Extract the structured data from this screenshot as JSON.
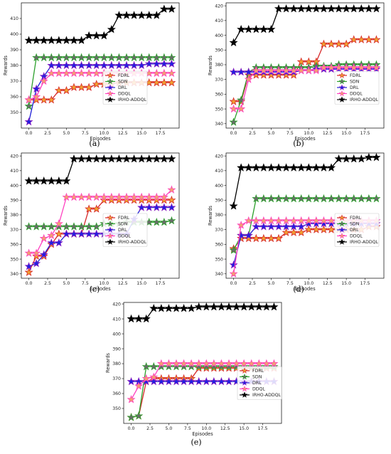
{
  "figure": {
    "legend_order": [
      "FDRL",
      "SDN",
      "DRL",
      "DDQL",
      "IRHO-ADDQL"
    ]
  },
  "series_style": {
    "FDRL": {
      "line": "#d62728",
      "marker_face": "#f0a030",
      "marker_edge": "#d62728"
    },
    "SDN": {
      "line": "#2ca02c",
      "marker_face": "#6a6a6a",
      "marker_edge": "#2ca02c"
    },
    "DRL": {
      "line": "#1f1fd6",
      "marker_face": "#2020e0",
      "marker_edge": "#8a20c0"
    },
    "DDQL": {
      "line": "#ff40c0",
      "marker_face": "#f2a070",
      "marker_edge": "#ff40c0"
    },
    "IRHO-ADDQL": {
      "line": "#000000",
      "marker_face": "#000000",
      "marker_edge": "#000000"
    }
  },
  "chart_data": [
    {
      "panel": "(a)",
      "type": "line",
      "xlabel": "Episodes",
      "ylabel": "Rewards",
      "xlim": [
        -1,
        20
      ],
      "ylim": [
        340,
        420
      ],
      "xticks": [
        0.0,
        2.5,
        5.0,
        7.5,
        10.0,
        12.5,
        15.0,
        17.5
      ],
      "xtick_labels": [
        "0.0",
        "2.5",
        "5.0",
        "7.5",
        "10.0",
        "12.5",
        "15.0",
        "17.5"
      ],
      "yticks": [
        350,
        360,
        370,
        380,
        390,
        400,
        410
      ],
      "legend_position": "center-right",
      "x": [
        0,
        1,
        2,
        3,
        4,
        5,
        6,
        7,
        8,
        9,
        10,
        11,
        12,
        13,
        14,
        15,
        16,
        17,
        18,
        19
      ],
      "series": [
        {
          "name": "FDRL",
          "values": [
            358,
            358,
            358,
            358,
            364,
            364,
            366,
            366,
            366,
            368,
            368,
            368,
            369,
            369,
            369,
            369,
            369,
            369,
            369,
            369
          ]
        },
        {
          "name": "SDN",
          "values": [
            354,
            385,
            385,
            385,
            385,
            385,
            385,
            385,
            385,
            385,
            385,
            385,
            385,
            385,
            385,
            385,
            385,
            385,
            385,
            385
          ]
        },
        {
          "name": "DRL",
          "values": [
            344,
            365,
            373,
            380,
            380,
            380,
            380,
            380,
            380,
            380,
            380,
            380,
            380,
            380,
            380,
            380,
            381,
            381,
            381,
            381
          ]
        },
        {
          "name": "DDQL",
          "values": [
            358,
            360,
            370,
            375,
            375,
            375,
            375,
            375,
            375,
            375,
            375,
            375,
            375,
            375,
            375,
            375,
            375,
            375,
            375,
            375
          ]
        },
        {
          "name": "IRHO-ADDQL",
          "values": [
            396,
            396,
            396,
            396,
            396,
            396,
            396,
            396,
            399,
            399,
            399,
            403,
            412,
            412,
            412,
            412,
            412,
            412,
            416,
            416
          ]
        }
      ]
    },
    {
      "panel": "(b)",
      "type": "line",
      "xlabel": "Episodes",
      "ylabel": "Rewards",
      "xlim": [
        -1,
        20
      ],
      "ylim": [
        337,
        422
      ],
      "xticks": [
        0.0,
        2.5,
        5.0,
        7.5,
        10.0,
        12.5,
        15.0,
        17.5
      ],
      "xtick_labels": [
        "0.0",
        "2.5",
        "5.0",
        "7.5",
        "10.0",
        "12.5",
        "15.0",
        "17.5"
      ],
      "yticks": [
        340,
        350,
        360,
        370,
        380,
        390,
        400,
        410,
        420
      ],
      "legend_position": "center-right",
      "x": [
        0,
        1,
        2,
        3,
        4,
        5,
        6,
        7,
        8,
        9,
        10,
        11,
        12,
        13,
        14,
        15,
        16,
        17,
        18,
        19
      ],
      "series": [
        {
          "name": "FDRL",
          "values": [
            355,
            355,
            373,
            373,
            373,
            373,
            373,
            373,
            373,
            382,
            382,
            382,
            394,
            394,
            394,
            394,
            397,
            397,
            397,
            397
          ]
        },
        {
          "name": "SDN",
          "values": [
            341,
            356,
            375,
            378,
            378,
            378,
            378,
            378,
            378,
            378,
            378,
            379,
            379,
            379,
            380,
            380,
            380,
            380,
            380,
            380
          ]
        },
        {
          "name": "DRL",
          "values": [
            375,
            375,
            375,
            375,
            375,
            375,
            375,
            375,
            375,
            376,
            376,
            377,
            377,
            377,
            377,
            377,
            377,
            377,
            377,
            377
          ]
        },
        {
          "name": "DDQL",
          "values": [
            350,
            350,
            370,
            376,
            376,
            376,
            376,
            376,
            376,
            376,
            376,
            376,
            378,
            378,
            378,
            378,
            378,
            378,
            378,
            378
          ]
        },
        {
          "name": "IRHO-ADDQL",
          "values": [
            395,
            404,
            404,
            404,
            404,
            404,
            418,
            418,
            418,
            418,
            418,
            418,
            418,
            418,
            418,
            418,
            418,
            418,
            418,
            418
          ]
        }
      ]
    },
    {
      "panel": "(c)",
      "type": "line",
      "xlabel": "Episodes",
      "ylabel": "Rewards",
      "xlim": [
        -1,
        20
      ],
      "ylim": [
        337,
        422
      ],
      "xticks": [
        0.0,
        2.5,
        5.0,
        7.5,
        10.0,
        12.5,
        15.0,
        17.5
      ],
      "xtick_labels": [
        "0.0",
        "2.5",
        "5.0",
        "7.5",
        "10.0",
        "12.5",
        "15.0",
        "17.5"
      ],
      "yticks": [
        340,
        350,
        360,
        370,
        380,
        390,
        400,
        410,
        420
      ],
      "legend_position": "lower-right",
      "x": [
        0,
        1,
        2,
        3,
        4,
        5,
        6,
        7,
        8,
        9,
        10,
        11,
        12,
        13,
        14,
        15,
        16,
        17,
        18,
        19
      ],
      "series": [
        {
          "name": "FDRL",
          "values": [
            341,
            352,
            352,
            360,
            367,
            367,
            367,
            367,
            384,
            384,
            390,
            390,
            390,
            390,
            390,
            390,
            390,
            390,
            390,
            390
          ]
        },
        {
          "name": "SDN",
          "values": [
            372,
            372,
            372,
            372,
            372,
            372,
            372,
            372,
            372,
            372,
            374,
            374,
            374,
            375,
            375,
            375,
            375,
            375,
            375,
            376
          ]
        },
        {
          "name": "DRL",
          "values": [
            345,
            347,
            353,
            361,
            361,
            367,
            367,
            367,
            367,
            367,
            367,
            367,
            367,
            367,
            377,
            385,
            385,
            385,
            385,
            385
          ]
        },
        {
          "name": "DDQL",
          "values": [
            354,
            354,
            364,
            366,
            374,
            392,
            392,
            392,
            392,
            392,
            392,
            392,
            392,
            392,
            392,
            392,
            392,
            392,
            392,
            397
          ]
        },
        {
          "name": "IRHO-ADDQL",
          "values": [
            403,
            403,
            403,
            403,
            403,
            403,
            418,
            418,
            418,
            418,
            418,
            418,
            418,
            418,
            418,
            418,
            418,
            418,
            418,
            418
          ]
        }
      ]
    },
    {
      "panel": "(d)",
      "type": "line",
      "xlabel": "Episodes",
      "ylabel": "Rewards",
      "xlim": [
        -1,
        20
      ],
      "ylim": [
        337,
        422
      ],
      "xticks": [
        0.0,
        2.5,
        5.0,
        7.5,
        10.0,
        12.5,
        15.0,
        17.5
      ],
      "xtick_labels": [
        "0.0",
        "2.5",
        "5.0",
        "7.5",
        "10.0",
        "12.5",
        "15.0",
        "17.5"
      ],
      "yticks": [
        340,
        350,
        360,
        370,
        380,
        390,
        400,
        410,
        420
      ],
      "legend_position": "lower-right",
      "x": [
        0,
        1,
        2,
        3,
        4,
        5,
        6,
        7,
        8,
        9,
        10,
        11,
        12,
        13,
        14,
        15,
        16,
        17,
        18,
        19
      ],
      "series": [
        {
          "name": "FDRL",
          "values": [
            357,
            364,
            364,
            364,
            364,
            364,
            364,
            368,
            368,
            368,
            370,
            370,
            370,
            370,
            370,
            370,
            370,
            370,
            372,
            372
          ]
        },
        {
          "name": "SDN",
          "values": [
            356,
            366,
            366,
            391,
            391,
            391,
            391,
            391,
            391,
            391,
            391,
            391,
            391,
            391,
            391,
            391,
            391,
            391,
            391,
            391
          ]
        },
        {
          "name": "DRL",
          "values": [
            346,
            366,
            366,
            372,
            372,
            372,
            372,
            372,
            372,
            372,
            374,
            374,
            374,
            374,
            374,
            374,
            374,
            374,
            374,
            374
          ]
        },
        {
          "name": "DDQL",
          "values": [
            340,
            373,
            376,
            376,
            376,
            376,
            376,
            376,
            376,
            376,
            376,
            376,
            376,
            376,
            376,
            376,
            376,
            376,
            376,
            376
          ]
        },
        {
          "name": "IRHO-ADDQL",
          "values": [
            386,
            412,
            412,
            412,
            412,
            412,
            412,
            412,
            412,
            412,
            412,
            412,
            412,
            412,
            418,
            418,
            418,
            418,
            419,
            419
          ]
        }
      ]
    },
    {
      "panel": "(e)",
      "type": "line",
      "xlabel": "Episodes",
      "ylabel": "Rewards",
      "xlim": [
        -1,
        20
      ],
      "ylim": [
        340,
        421
      ],
      "xticks": [
        0.0,
        2.5,
        5.0,
        7.5,
        10.0,
        12.5,
        15.0,
        17.5
      ],
      "xtick_labels": [
        "0.0",
        "2.5",
        "5.0",
        "7.5",
        "10.0",
        "12.5",
        "15.0",
        "17.5"
      ],
      "yticks": [
        350,
        360,
        370,
        380,
        390,
        400,
        410,
        420
      ],
      "legend_position": "center-right",
      "x": [
        0,
        1,
        2,
        3,
        4,
        5,
        6,
        7,
        8,
        9,
        10,
        11,
        12,
        13,
        14,
        15,
        16,
        17,
        18,
        19
      ],
      "series": [
        {
          "name": "FDRL",
          "values": [
            344,
            345,
            368,
            370,
            370,
            370,
            370,
            370,
            370,
            377,
            377,
            377,
            377,
            377,
            377,
            377,
            377,
            377,
            377,
            377
          ]
        },
        {
          "name": "SDN",
          "values": [
            344,
            345,
            378,
            378,
            378,
            378,
            378,
            378,
            378,
            378,
            378,
            378,
            378,
            378,
            378,
            378,
            378,
            378,
            378,
            378
          ]
        },
        {
          "name": "DRL",
          "values": [
            368,
            368,
            368,
            368,
            368,
            368,
            368,
            368,
            368,
            368,
            368,
            368,
            368,
            368,
            368,
            368,
            368,
            368,
            368,
            368
          ]
        },
        {
          "name": "DDQL",
          "values": [
            356,
            365,
            370,
            371,
            380,
            380,
            380,
            380,
            380,
            380,
            380,
            380,
            380,
            380,
            380,
            380,
            380,
            380,
            380,
            380
          ]
        },
        {
          "name": "IRHO-ADDQL",
          "values": [
            410,
            410,
            410,
            417,
            417,
            417,
            417,
            417,
            417,
            418,
            418,
            418,
            418,
            418,
            418,
            418,
            418,
            418,
            418,
            418
          ]
        }
      ]
    }
  ]
}
